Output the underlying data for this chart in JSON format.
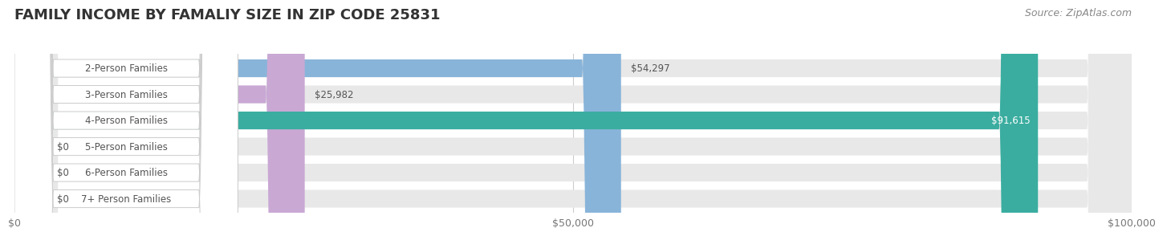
{
  "title": "FAMILY INCOME BY FAMALIY SIZE IN ZIP CODE 25831",
  "source": "Source: ZipAtlas.com",
  "categories": [
    "2-Person Families",
    "3-Person Families",
    "4-Person Families",
    "5-Person Families",
    "6-Person Families",
    "7+ Person Families"
  ],
  "values": [
    54297,
    25982,
    91615,
    0,
    0,
    0
  ],
  "bar_colors": [
    "#89b4d9",
    "#c9a8d4",
    "#3aada0",
    "#a8a8d8",
    "#f4a0b0",
    "#f8d4a0"
  ],
  "label_colors": [
    "#555555",
    "#555555",
    "#ffffff",
    "#555555",
    "#555555",
    "#555555"
  ],
  "xlim": [
    0,
    100000
  ],
  "xticks": [
    0,
    50000,
    100000
  ],
  "xtick_labels": [
    "$0",
    "$50,000",
    "$100,000"
  ],
  "bar_bg_color": "#e8e8e8",
  "title_fontsize": 13,
  "source_fontsize": 9,
  "label_fontsize": 8.5,
  "value_fontsize": 8.5,
  "bar_height": 0.68,
  "fig_bg_color": "#ffffff"
}
